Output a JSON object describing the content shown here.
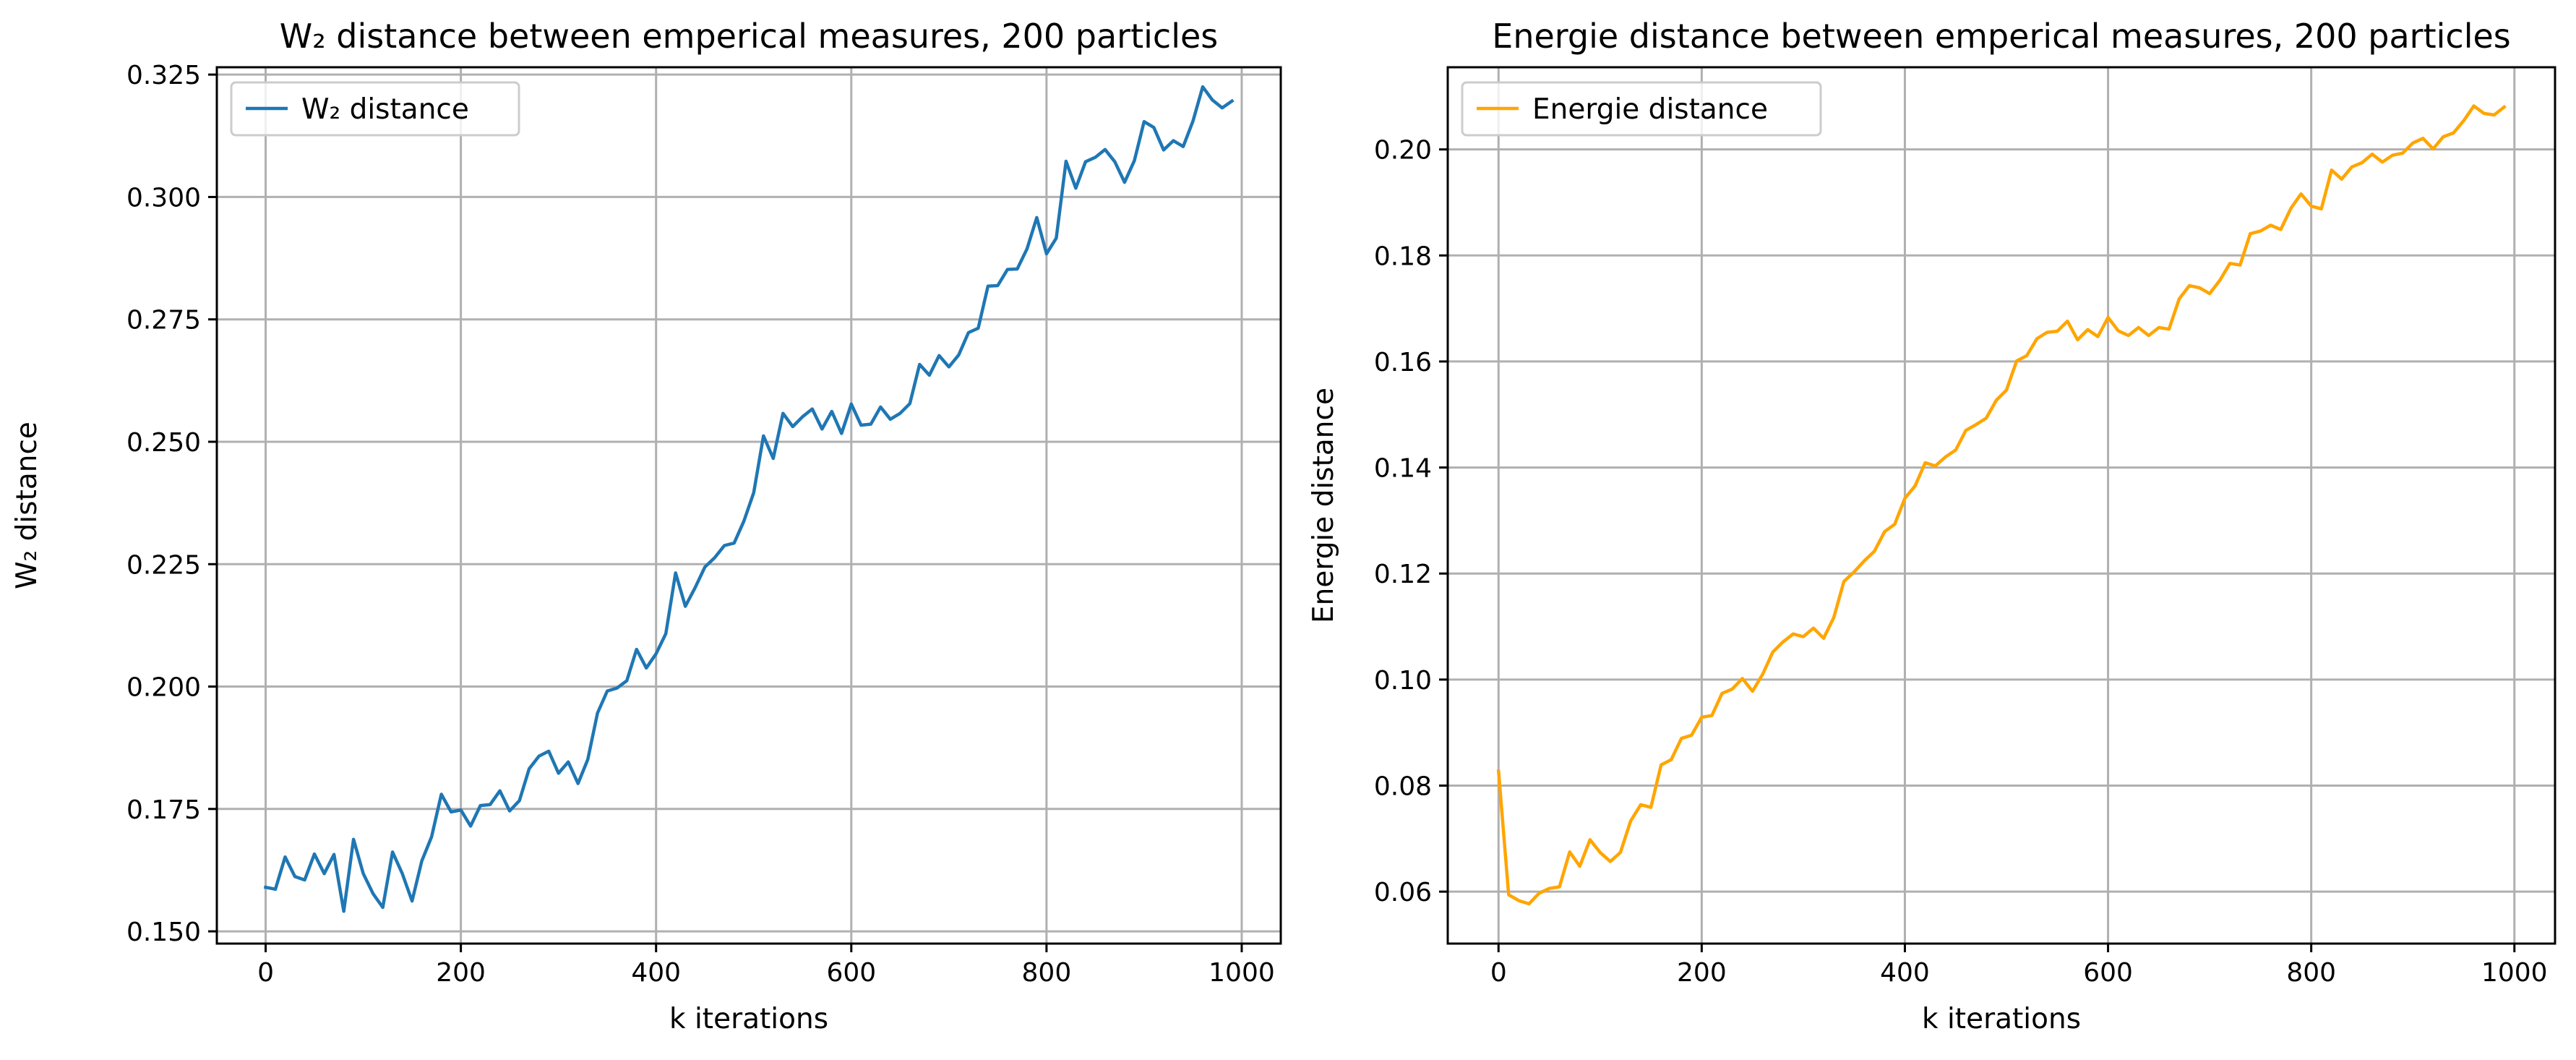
{
  "figure": {
    "background": "#ffffff"
  },
  "chart_data": [
    {
      "type": "line",
      "title": "W₂ distance between emperical measures, 200 particles",
      "xlabel": "k iterations",
      "ylabel": "W₂ distance",
      "xlim": [
        -50,
        1040
      ],
      "ylim": [
        0.1475,
        0.3265
      ],
      "xticks": [
        0,
        200,
        400,
        600,
        800,
        1000
      ],
      "xtick_labels": [
        "0",
        "200",
        "400",
        "600",
        "800",
        "1000"
      ],
      "yticks": [
        0.15,
        0.175,
        0.2,
        0.225,
        0.25,
        0.275,
        0.3,
        0.325
      ],
      "ytick_labels": [
        "0.150",
        "0.175",
        "0.200",
        "0.225",
        "0.250",
        "0.275",
        "0.300",
        "0.325"
      ],
      "grid": true,
      "legend_position": "top-left",
      "series": [
        {
          "name": "W₂ distance",
          "color": "#1f77b4",
          "x": [
            0,
            10,
            20,
            30,
            40,
            50,
            60,
            70,
            80,
            90,
            100,
            110,
            120,
            130,
            140,
            150,
            160,
            170,
            180,
            190,
            200,
            210,
            220,
            230,
            240,
            250,
            260,
            270,
            280,
            290,
            300,
            310,
            320,
            330,
            340,
            350,
            360,
            370,
            380,
            390,
            400,
            410,
            420,
            430,
            440,
            450,
            460,
            470,
            480,
            490,
            500,
            510,
            520,
            530,
            540,
            550,
            560,
            570,
            580,
            590,
            600,
            610,
            620,
            630,
            640,
            650,
            660,
            670,
            680,
            690,
            700,
            710,
            720,
            730,
            740,
            750,
            760,
            770,
            780,
            790,
            800,
            810,
            820,
            830,
            840,
            850,
            860,
            870,
            880,
            890,
            900,
            910,
            920,
            930,
            940,
            950,
            960,
            970,
            980,
            990
          ],
          "y": [
            0.159,
            0.1586,
            0.1652,
            0.1612,
            0.1605,
            0.1658,
            0.1618,
            0.1657,
            0.1541,
            0.1688,
            0.1618,
            0.1577,
            0.1549,
            0.1662,
            0.1618,
            0.1562,
            0.1644,
            0.1693,
            0.178,
            0.1744,
            0.1748,
            0.1715,
            0.1757,
            0.1759,
            0.1787,
            0.1746,
            0.1767,
            0.1832,
            0.1858,
            0.1868,
            0.1823,
            0.1846,
            0.1802,
            0.1851,
            0.1946,
            0.1991,
            0.1997,
            0.2012,
            0.2076,
            0.2038,
            0.2067,
            0.2108,
            0.2232,
            0.2164,
            0.2202,
            0.2244,
            0.2263,
            0.2288,
            0.2293,
            0.2338,
            0.2396,
            0.2512,
            0.2466,
            0.2558,
            0.2531,
            0.2551,
            0.2567,
            0.2526,
            0.2562,
            0.2517,
            0.2577,
            0.2534,
            0.2536,
            0.2571,
            0.2546,
            0.2558,
            0.2578,
            0.2658,
            0.2636,
            0.2676,
            0.2653,
            0.2677,
            0.2723,
            0.2732,
            0.2818,
            0.2819,
            0.2852,
            0.2853,
            0.2894,
            0.2958,
            0.2884,
            0.2916,
            0.3073,
            0.3018,
            0.3072,
            0.3081,
            0.3097,
            0.3072,
            0.303,
            0.3074,
            0.3154,
            0.3142,
            0.3096,
            0.3115,
            0.3103,
            0.3155,
            0.3225,
            0.3198,
            0.3182,
            0.3196
          ]
        }
      ]
    },
    {
      "type": "line",
      "title": "Energie distance between emperical measures, 200 particles",
      "xlabel": "k iterations",
      "ylabel": "Energie distance",
      "xlim": [
        -50,
        1040
      ],
      "ylim": [
        0.0502,
        0.2155
      ],
      "xticks": [
        0,
        200,
        400,
        600,
        800,
        1000
      ],
      "xtick_labels": [
        "0",
        "200",
        "400",
        "600",
        "800",
        "1000"
      ],
      "yticks": [
        0.06,
        0.08,
        0.1,
        0.12,
        0.14,
        0.16,
        0.18,
        0.2
      ],
      "ytick_labels": [
        "0.06",
        "0.08",
        "0.10",
        "0.12",
        "0.14",
        "0.16",
        "0.18",
        "0.20"
      ],
      "grid": true,
      "legend_position": "top-left",
      "series": [
        {
          "name": "Energie distance",
          "color": "#ffa500",
          "x": [
            0,
            10,
            20,
            30,
            40,
            50,
            60,
            70,
            80,
            90,
            100,
            110,
            120,
            130,
            140,
            150,
            160,
            170,
            180,
            190,
            200,
            210,
            220,
            230,
            240,
            250,
            260,
            270,
            280,
            290,
            300,
            310,
            320,
            330,
            340,
            350,
            360,
            370,
            380,
            390,
            400,
            410,
            420,
            430,
            440,
            450,
            460,
            470,
            480,
            490,
            500,
            510,
            520,
            530,
            540,
            550,
            560,
            570,
            580,
            590,
            600,
            610,
            620,
            630,
            640,
            650,
            660,
            670,
            680,
            690,
            700,
            710,
            720,
            730,
            740,
            750,
            760,
            770,
            780,
            790,
            800,
            810,
            820,
            830,
            840,
            850,
            860,
            870,
            880,
            890,
            900,
            910,
            920,
            930,
            940,
            950,
            960,
            970,
            980,
            990
          ],
          "y": [
            0.0827,
            0.0594,
            0.0583,
            0.0577,
            0.0597,
            0.0606,
            0.0609,
            0.0675,
            0.0648,
            0.0698,
            0.0674,
            0.0657,
            0.0674,
            0.0733,
            0.0764,
            0.0759,
            0.0839,
            0.0849,
            0.0889,
            0.0895,
            0.0929,
            0.0932,
            0.0974,
            0.0982,
            0.1002,
            0.0978,
            0.101,
            0.1052,
            0.1071,
            0.1086,
            0.1081,
            0.1097,
            0.1078,
            0.1117,
            0.1185,
            0.1203,
            0.1224,
            0.1242,
            0.1279,
            0.1293,
            0.1342,
            0.1365,
            0.1409,
            0.1403,
            0.142,
            0.1433,
            0.147,
            0.1481,
            0.1493,
            0.1527,
            0.1546,
            0.1601,
            0.1611,
            0.1643,
            0.1655,
            0.1657,
            0.1676,
            0.1641,
            0.166,
            0.1647,
            0.1683,
            0.1658,
            0.1649,
            0.1664,
            0.1649,
            0.1664,
            0.1661,
            0.1718,
            0.1743,
            0.1739,
            0.1728,
            0.1753,
            0.1785,
            0.1782,
            0.1841,
            0.1846,
            0.1857,
            0.1849,
            0.1889,
            0.1916,
            0.1893,
            0.1888,
            0.1961,
            0.1944,
            0.1967,
            0.1975,
            0.1991,
            0.1976,
            0.1989,
            0.1993,
            0.2012,
            0.2021,
            0.2001,
            0.2024,
            0.2031,
            0.2054,
            0.2082,
            0.2068,
            0.2065,
            0.208
          ]
        }
      ]
    }
  ]
}
